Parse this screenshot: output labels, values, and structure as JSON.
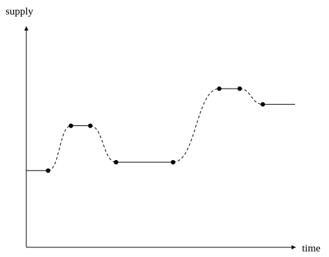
{
  "chart_data": {
    "type": "line",
    "xlabel": "time",
    "ylabel": "supply",
    "xlim": [
      0,
      100
    ],
    "ylim": [
      0,
      100
    ],
    "grid": false,
    "legend": "none",
    "axis_arrows": true,
    "marker_points": [
      {
        "x": 8.1,
        "y": 34.7
      },
      {
        "x": 16.6,
        "y": 55.0
      },
      {
        "x": 23.8,
        "y": 55.0
      },
      {
        "x": 33.4,
        "y": 38.5
      },
      {
        "x": 54.6,
        "y": 38.5
      },
      {
        "x": 71.8,
        "y": 71.8
      },
      {
        "x": 79.4,
        "y": 71.8
      },
      {
        "x": 88.0,
        "y": 64.7
      }
    ],
    "segments": [
      {
        "style": "solid",
        "from": {
          "x": 0,
          "y": 34.7
        },
        "to": {
          "x": 8.1,
          "y": 34.7
        }
      },
      {
        "style": "dashed",
        "from": {
          "x": 8.1,
          "y": 34.7
        },
        "to": {
          "x": 16.6,
          "y": 55.0
        }
      },
      {
        "style": "solid",
        "from": {
          "x": 16.6,
          "y": 55.0
        },
        "to": {
          "x": 23.8,
          "y": 55.0
        }
      },
      {
        "style": "dashed",
        "from": {
          "x": 23.8,
          "y": 55.0
        },
        "to": {
          "x": 33.4,
          "y": 38.5
        }
      },
      {
        "style": "solid",
        "from": {
          "x": 33.4,
          "y": 38.5
        },
        "to": {
          "x": 54.6,
          "y": 38.5
        }
      },
      {
        "style": "dashed",
        "from": {
          "x": 54.6,
          "y": 38.5
        },
        "to": {
          "x": 71.8,
          "y": 71.8
        }
      },
      {
        "style": "solid",
        "from": {
          "x": 71.8,
          "y": 71.8
        },
        "to": {
          "x": 79.4,
          "y": 71.8
        }
      },
      {
        "style": "dashed",
        "from": {
          "x": 79.4,
          "y": 71.8
        },
        "to": {
          "x": 88.0,
          "y": 64.7
        }
      },
      {
        "style": "solid",
        "from": {
          "x": 88.0,
          "y": 64.7
        },
        "to": {
          "x": 100,
          "y": 64.7
        }
      }
    ],
    "colors": {
      "line": "#000000",
      "marker": "#000000",
      "axis": "#000000"
    }
  }
}
